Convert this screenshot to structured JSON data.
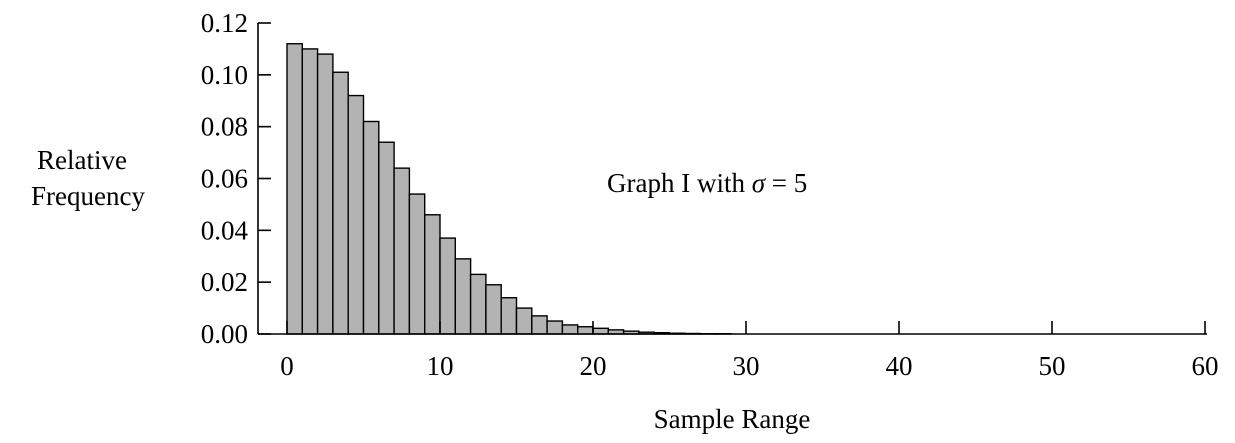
{
  "chart_data": {
    "type": "bar",
    "xlabel": "Sample Range",
    "ylabel": [
      "Relative",
      "Frequency"
    ],
    "annotation": {
      "prefix": "Graph I with ",
      "symbol": "σ",
      "suffix": " = 5"
    },
    "xlim": [
      0,
      60
    ],
    "ylim": [
      0,
      0.12
    ],
    "xticks": [
      "0",
      "10",
      "20",
      "30",
      "40",
      "50",
      "60"
    ],
    "yticks": [
      "0.00",
      "0.02",
      "0.04",
      "0.06",
      "0.08",
      "0.10",
      "0.12"
    ],
    "xtick_values": [
      0,
      10,
      20,
      30,
      40,
      50,
      60
    ],
    "ytick_values": [
      0,
      0.02,
      0.04,
      0.06,
      0.08,
      0.1,
      0.12
    ],
    "bin_width": 1,
    "bins_start": [
      0,
      1,
      2,
      3,
      4,
      5,
      6,
      7,
      8,
      9,
      10,
      11,
      12,
      13,
      14,
      15,
      16,
      17,
      18,
      19,
      20,
      21,
      22,
      23,
      24,
      25,
      26,
      27,
      28
    ],
    "values": [
      0.112,
      0.11,
      0.108,
      0.101,
      0.092,
      0.082,
      0.074,
      0.064,
      0.054,
      0.046,
      0.037,
      0.029,
      0.023,
      0.019,
      0.014,
      0.01,
      0.007,
      0.005,
      0.0035,
      0.0028,
      0.0022,
      0.0016,
      0.0011,
      0.0007,
      0.0005,
      0.0003,
      0.0002,
      0.0001,
      0.0001
    ],
    "grid": false,
    "legend": "none"
  }
}
